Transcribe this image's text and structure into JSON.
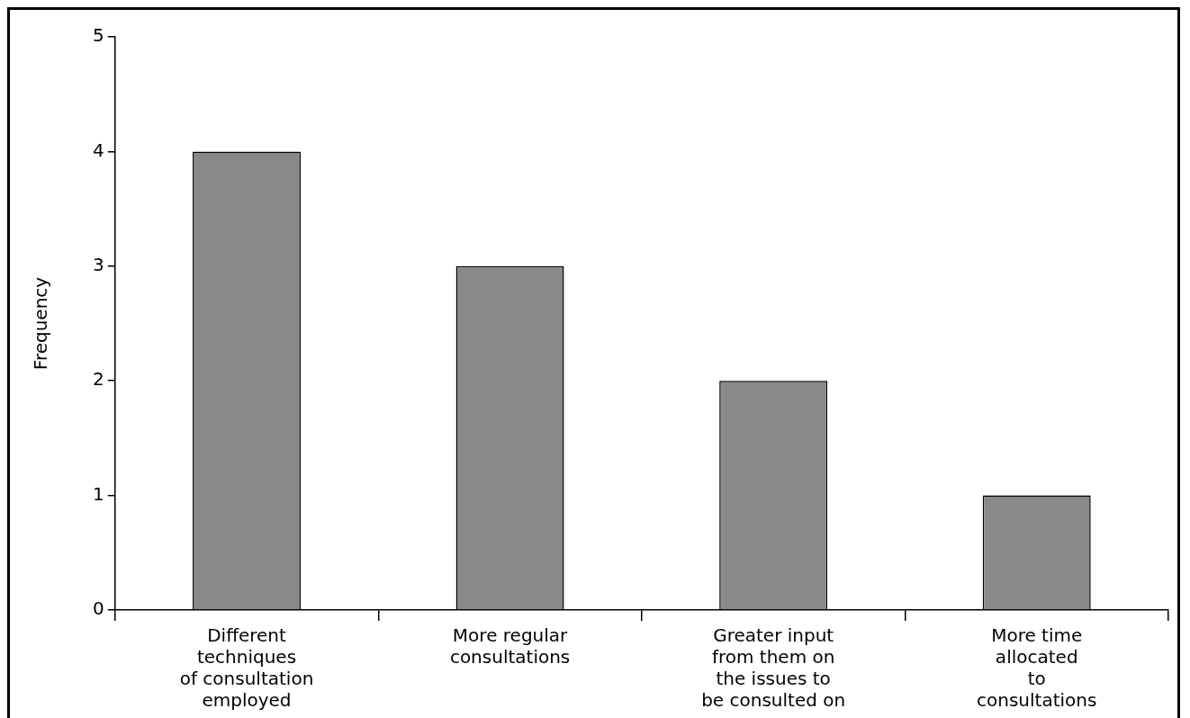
{
  "chart_data": {
    "type": "bar",
    "ylabel": "Frequency",
    "categories": [
      "Different\ntechniques\nof consultation\nemployed",
      "More regular\nconsultations",
      "Greater input\nfrom them on\nthe issues to\nbe consulted on",
      "More time\nallocated\nto\nconsultations"
    ],
    "values": [
      4,
      3,
      2,
      1
    ],
    "color": "#898989",
    "ylim": [
      0,
      5
    ],
    "yticks": [
      0,
      1,
      2,
      3,
      4,
      5
    ],
    "grid": false,
    "legend": false
  }
}
